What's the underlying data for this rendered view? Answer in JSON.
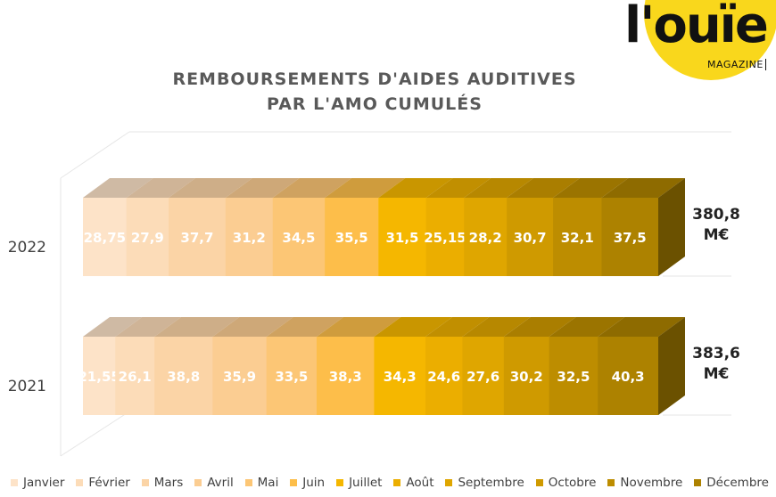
{
  "logo": {
    "name": "l'ouïe",
    "sub": "MAGAZINE"
  },
  "chart_data": {
    "type": "bar",
    "stacked": true,
    "orientation": "horizontal",
    "title": [
      "REMBOURSEMENTS D'AIDES AUDITIVES",
      "PAR L'AMO CUMULÉS"
    ],
    "categories": [
      "2022",
      "2021"
    ],
    "series": [
      {
        "name": "Janvier",
        "color": "#fde3c8",
        "values": [
          28.75,
          21.55
        ],
        "labels": [
          "28,75",
          "21,55"
        ]
      },
      {
        "name": "Février",
        "color": "#fcdcb8",
        "values": [
          27.9,
          26.1
        ],
        "labels": [
          "27,9",
          "26,1"
        ]
      },
      {
        "name": "Mars",
        "color": "#fbd4a6",
        "values": [
          37.7,
          38.8
        ],
        "labels": [
          "37,7",
          "38,8"
        ]
      },
      {
        "name": "Avril",
        "color": "#fbcd92",
        "values": [
          31.2,
          35.9
        ],
        "labels": [
          "31,2",
          "35,9"
        ]
      },
      {
        "name": "Mai",
        "color": "#fcc675",
        "values": [
          34.5,
          33.5
        ],
        "labels": [
          "34,5",
          "33,5"
        ]
      },
      {
        "name": "Juin",
        "color": "#fdbe4a",
        "values": [
          35.5,
          38.3
        ],
        "labels": [
          "35,5",
          "38,3"
        ]
      },
      {
        "name": "Juillet",
        "color": "#f5b700",
        "values": [
          31.5,
          34.3
        ],
        "labels": [
          "31,5",
          "34,3"
        ]
      },
      {
        "name": "Août",
        "color": "#ebae00",
        "values": [
          25.15,
          24.6
        ],
        "labels": [
          "25,15",
          "24,6"
        ]
      },
      {
        "name": "Septembre",
        "color": "#dfa600",
        "values": [
          28.2,
          27.6
        ],
        "labels": [
          "28,2",
          "27,6"
        ]
      },
      {
        "name": "Octobre",
        "color": "#cf9a00",
        "values": [
          30.7,
          30.2
        ],
        "labels": [
          "30,7",
          "30,2"
        ]
      },
      {
        "name": "Novembre",
        "color": "#bd8d00",
        "values": [
          32.1,
          32.5
        ],
        "labels": [
          "32,1",
          "32,5"
        ]
      },
      {
        "name": "Décembre",
        "color": "#ad8200",
        "values": [
          37.5,
          40.3
        ],
        "labels": [
          "37,5",
          "40,3"
        ]
      }
    ],
    "totals": [
      {
        "value": 380.8,
        "line1": "380,8",
        "line2": "M€"
      },
      {
        "value": 383.6,
        "line1": "383,6",
        "line2": "M€"
      }
    ],
    "legend_position": "bottom"
  }
}
